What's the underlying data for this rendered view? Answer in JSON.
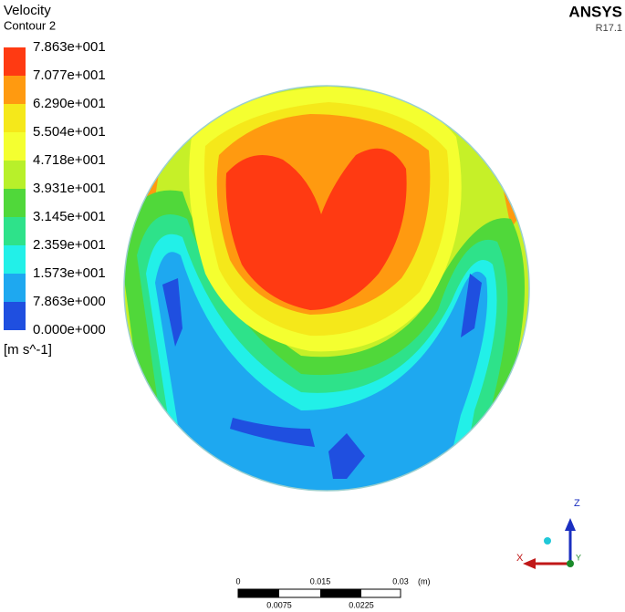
{
  "legend": {
    "title": "Velocity",
    "subtitle": "Contour 2",
    "levels": [
      "7.863e+001",
      "7.077e+001",
      "6.290e+001",
      "5.504e+001",
      "4.718e+001",
      "3.931e+001",
      "3.145e+001",
      "2.359e+001",
      "1.573e+001",
      "7.863e+000",
      "0.000e+000"
    ],
    "colors": [
      "#ff3a12",
      "#ff9a10",
      "#f5e81a",
      "#f4ff30",
      "#b8f02a",
      "#50d83a",
      "#2ee28a",
      "#22f0e8",
      "#1ea8f0",
      "#1f4fe0"
    ],
    "unit": "[m s^-1]"
  },
  "brand": {
    "name": "ANSYS",
    "version": "R17.1"
  },
  "scale_bar": {
    "top_labels": [
      "0",
      "0.015",
      "0.03",
      "(m)"
    ],
    "bottom_labels": [
      "0.0075",
      "0.0225"
    ]
  },
  "triad": {
    "z": "Z",
    "x": "X",
    "y": "Y"
  }
}
